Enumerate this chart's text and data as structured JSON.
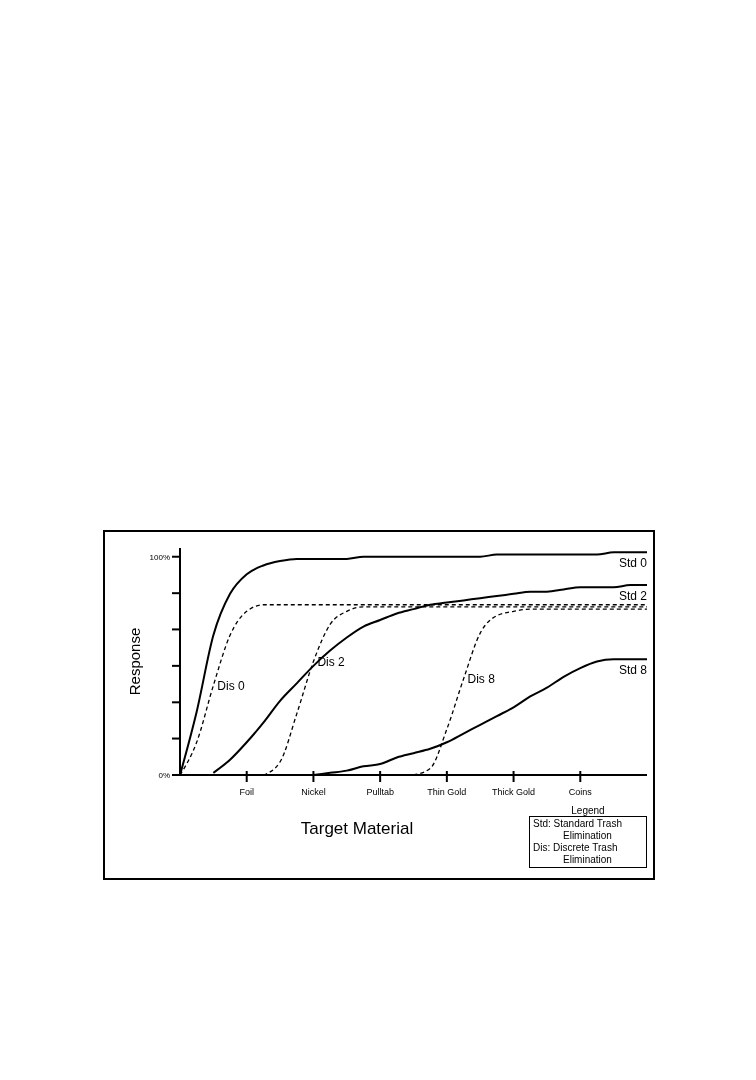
{
  "chart_data": {
    "type": "line",
    "xlabel": "Target Material",
    "ylabel": "Response",
    "categories": [
      null,
      null,
      null,
      null,
      "Foil",
      null,
      null,
      null,
      "Nickel",
      null,
      null,
      null,
      "Pulltab",
      null,
      null,
      null,
      "Thin Gold",
      null,
      null,
      null,
      "Thick Gold",
      null,
      null,
      null,
      "Coins",
      null,
      null,
      null,
      null
    ],
    "ylim": [
      0,
      104
    ],
    "yticks": [
      {
        "value": 0,
        "label": "0%"
      },
      {
        "value": 16.7,
        "label": null
      },
      {
        "value": 33.3,
        "label": null
      },
      {
        "value": 50,
        "label": null
      },
      {
        "value": 66.7,
        "label": null
      },
      {
        "value": 83.3,
        "label": null
      },
      {
        "value": 100,
        "label": "100%"
      }
    ],
    "grid": false,
    "legend": false,
    "marker": "none",
    "series": [
      {
        "name": "Std 0",
        "color": "#000000",
        "line_style": "solid",
        "values": [
          0,
          29,
          64,
          83,
          92,
          96,
          98,
          99,
          99,
          99,
          99,
          100,
          100,
          100,
          100,
          100,
          100,
          100,
          100,
          101,
          101,
          101,
          101,
          101,
          101,
          101,
          102,
          102,
          102
        ]
      },
      {
        "name": "Std 2",
        "color": "#000000",
        "line_style": "solid",
        "values": [
          null,
          null,
          1,
          7,
          15,
          24,
          34,
          42,
          50,
          57,
          63,
          68,
          71,
          74,
          76,
          78,
          79,
          80,
          81,
          82,
          83,
          84,
          84,
          85,
          86,
          86,
          86,
          87,
          87
        ]
      },
      {
        "name": "Std 8",
        "color": "#000000",
        "line_style": "solid",
        "values": [
          null,
          null,
          null,
          null,
          null,
          null,
          null,
          null,
          0,
          1,
          2,
          4,
          5,
          8,
          10,
          12,
          15,
          19,
          23,
          27,
          31,
          36,
          40,
          45,
          49,
          52,
          53,
          53,
          53
        ]
      },
      {
        "name": "Dis 0",
        "color": "#000000",
        "line_style": "dashed",
        "values": [
          0,
          15,
          41,
          64,
          75,
          78,
          78,
          78,
          78,
          78,
          78,
          78,
          78,
          78,
          78,
          78,
          78,
          78,
          78,
          78,
          78,
          78,
          78,
          78,
          78,
          78,
          78,
          78,
          78
        ]
      },
      {
        "name": "Dis 2",
        "color": "#000000",
        "line_style": "dashed",
        "values": [
          null,
          null,
          null,
          null,
          null,
          0,
          6,
          28,
          52,
          69,
          75,
          77,
          77,
          77,
          77,
          77,
          77,
          77,
          77,
          77,
          77,
          77,
          77,
          77,
          77,
          77,
          77,
          77,
          77
        ]
      },
      {
        "name": "Dis 8",
        "color": "#000000",
        "line_style": "dashed",
        "values": [
          null,
          null,
          null,
          null,
          null,
          null,
          null,
          null,
          null,
          null,
          null,
          null,
          null,
          null,
          0,
          3,
          21,
          44,
          65,
          73,
          75,
          76,
          76,
          76,
          76,
          76,
          76,
          76,
          76
        ]
      }
    ],
    "annotations": [
      "Legend",
      "Std: Standard Trash Elimination",
      "Dis: Discrete Trash Elimination"
    ]
  }
}
